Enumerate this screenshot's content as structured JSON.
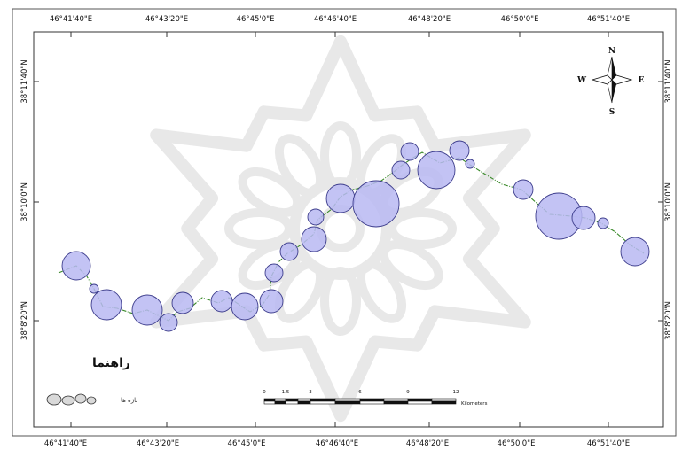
{
  "map": {
    "top_labels": [
      "46°41'40\"E",
      "46°43'20\"E",
      "46°45'0\"E",
      "46°46'40\"E",
      "46°48'20\"E",
      "46°50'0\"E",
      "46°51'40\"E"
    ],
    "bottom_labels": [
      "46°41'40\"E",
      "46°43'20\"E",
      "46°45'0\"E",
      "46°46'40\"E",
      "46°48'20\"E",
      "46°50'0\"E",
      "46°51'40\"E"
    ],
    "left_labels": [
      "38°11'40\"N",
      "38°10'0\"N",
      "38°8'20\"N"
    ],
    "right_labels": [
      "38°11'40\"N",
      "38°10'0\"N",
      "38°8'20\"N"
    ],
    "legend_title": "راهنما",
    "legend_item_label": "بازه ها",
    "scale_ticks": [
      "0",
      "1.5",
      "3",
      "6",
      "9",
      "12"
    ],
    "scale_unit": "Kilometers",
    "compass": {
      "n": "N",
      "s": "S",
      "e": "E",
      "w": "W"
    },
    "colors": {
      "circle_fill": "#b9b9f2",
      "circle_stroke": "#3d3d8c",
      "river": "#3a8a2a",
      "watermark": "#d6d6d6"
    }
  }
}
